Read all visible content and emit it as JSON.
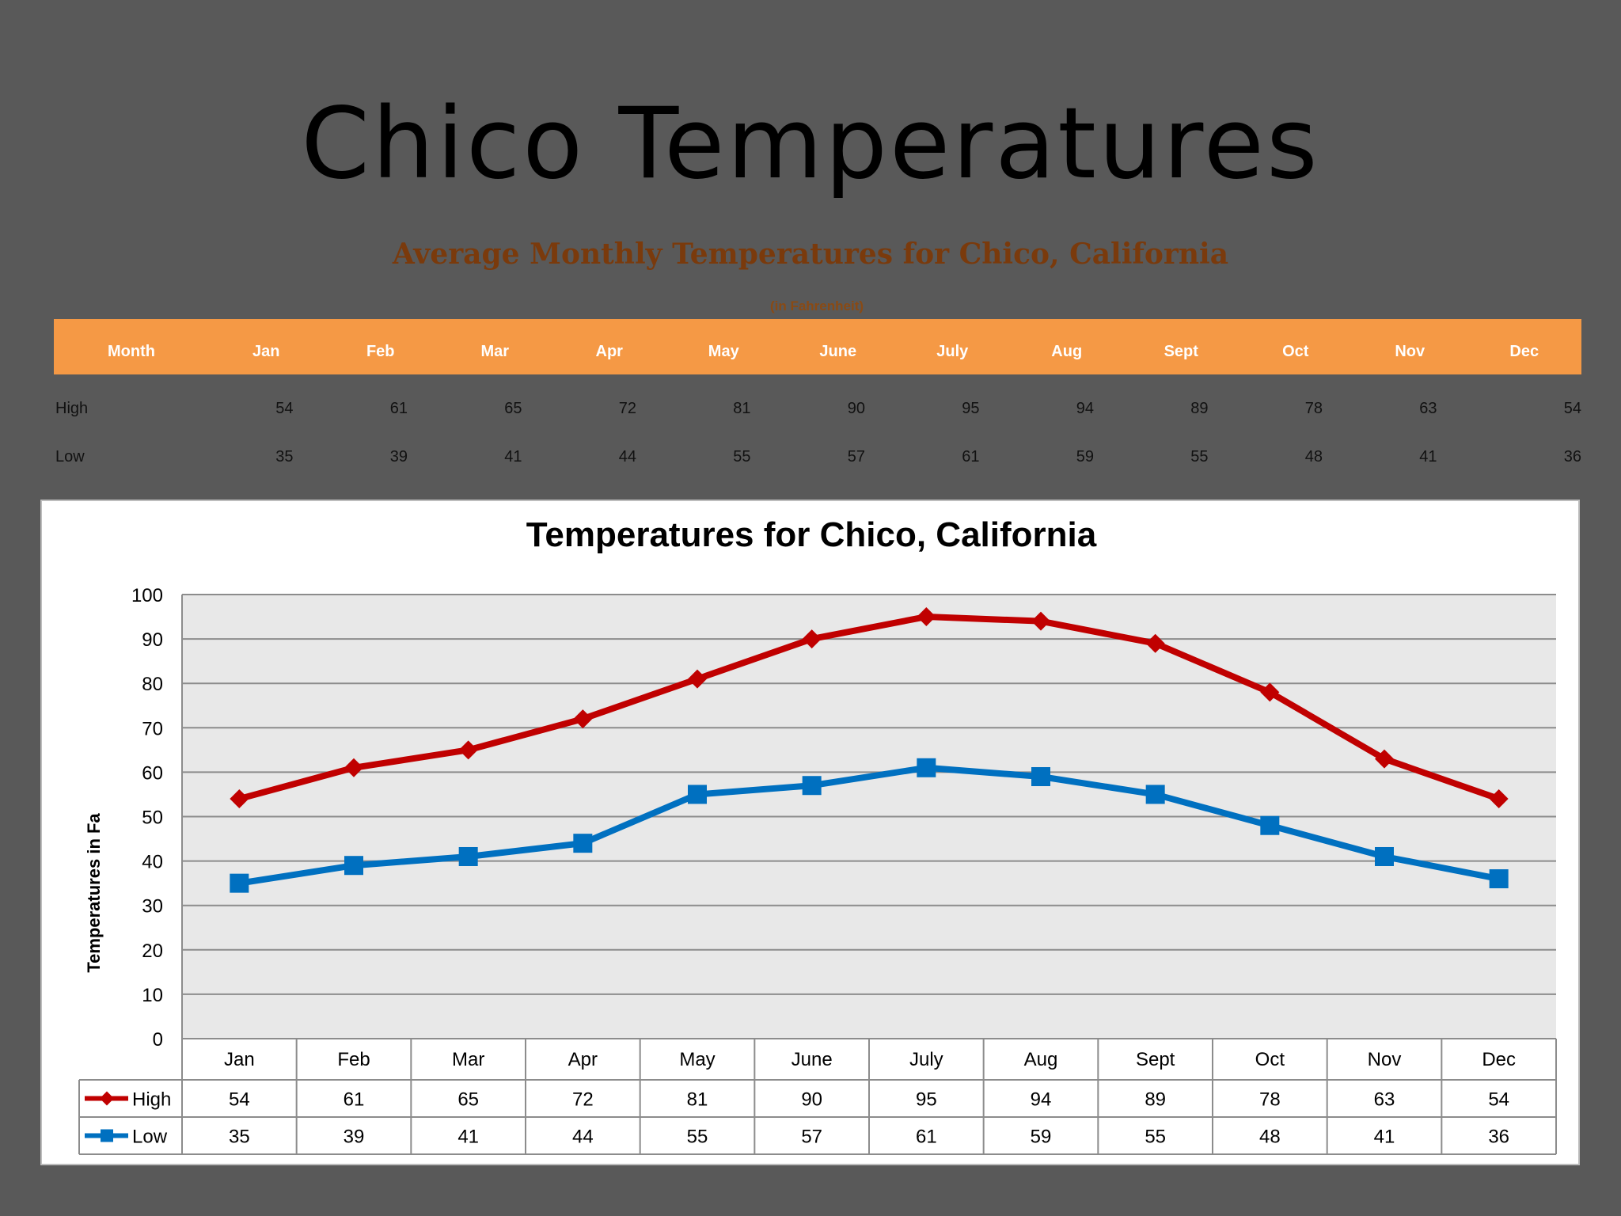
{
  "slide": {
    "title": "Chico Temperatures",
    "subtitle": "Average Monthly Temperatures for Chico, California",
    "unit_note": "(in Fahrenheit)"
  },
  "table": {
    "header_label": "Month",
    "months": [
      "Jan",
      "Feb",
      "Mar",
      "Apr",
      "May",
      "June",
      "July",
      "Aug",
      "Sept",
      "Oct",
      "Nov",
      "Dec"
    ],
    "rows": [
      {
        "label": "High",
        "values": [
          54,
          61,
          65,
          72,
          81,
          90,
          95,
          94,
          89,
          78,
          63,
          54
        ]
      },
      {
        "label": "Low",
        "values": [
          35,
          39,
          41,
          44,
          55,
          57,
          61,
          59,
          55,
          48,
          41,
          36
        ]
      }
    ]
  },
  "colors": {
    "background": "#595959",
    "header_fill": "#f59945",
    "high_series": "#c00000",
    "low_series": "#0070c0",
    "plot_area": "#e8e8e8"
  },
  "chart_data": {
    "type": "line",
    "title": "Temperatures for Chico, California",
    "xlabel": "",
    "ylabel": "Temperatures in Fa",
    "categories": [
      "Jan",
      "Feb",
      "Mar",
      "Apr",
      "May",
      "June",
      "July",
      "Aug",
      "Sept",
      "Oct",
      "Nov",
      "Dec"
    ],
    "ylim": [
      0,
      100
    ],
    "yticks": [
      0,
      10,
      20,
      30,
      40,
      50,
      60,
      70,
      80,
      90,
      100
    ],
    "grid": true,
    "legend": "data-table",
    "series": [
      {
        "name": "High",
        "marker": "diamond",
        "color": "#c00000",
        "values": [
          54,
          61,
          65,
          72,
          81,
          90,
          95,
          94,
          89,
          78,
          63,
          54
        ]
      },
      {
        "name": "Low",
        "marker": "square",
        "color": "#0070c0",
        "values": [
          35,
          39,
          41,
          44,
          55,
          57,
          61,
          59,
          55,
          48,
          41,
          36
        ]
      }
    ]
  }
}
